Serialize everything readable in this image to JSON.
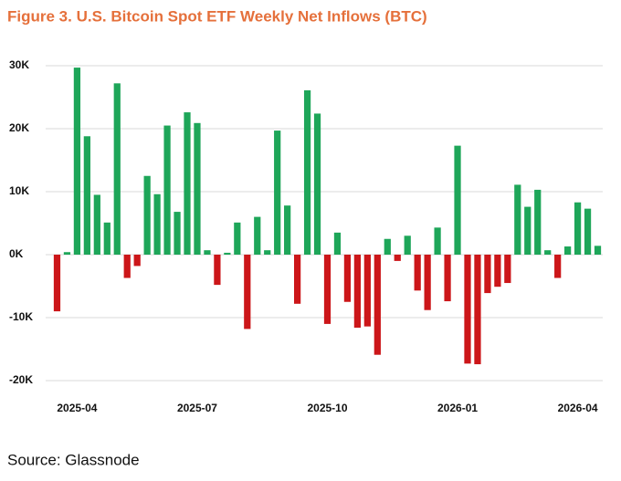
{
  "chart_data": {
    "type": "bar",
    "title": "Figure 3. U.S. Bitcoin Spot ETF Weekly Net Inflows (BTC)",
    "source": "Source: Glassnode",
    "categories": [
      null,
      null,
      "2025-04",
      null,
      null,
      null,
      null,
      null,
      null,
      null,
      null,
      null,
      null,
      null,
      "2025-07",
      null,
      null,
      null,
      null,
      null,
      null,
      null,
      null,
      null,
      null,
      null,
      null,
      "2025-10",
      null,
      null,
      null,
      null,
      null,
      null,
      null,
      null,
      null,
      null,
      null,
      null,
      "2026-01",
      null,
      null,
      null,
      null,
      null,
      null,
      null,
      null,
      null,
      null,
      null,
      "2026-04",
      null,
      null
    ],
    "values": [
      -9000,
      400,
      29700,
      18800,
      9500,
      5100,
      27200,
      -3700,
      -1800,
      12500,
      9600,
      20500,
      6800,
      22600,
      20900,
      700,
      -4800,
      300,
      5100,
      -11800,
      6000,
      700,
      19700,
      7800,
      -7800,
      26100,
      22400,
      -11000,
      3500,
      -7500,
      -11600,
      -11400,
      -15900,
      2500,
      -1000,
      3000,
      -5700,
      -8800,
      4300,
      -7400,
      17300,
      -17300,
      -17400,
      -6100,
      -5100,
      -4500,
      11100,
      7600,
      10300,
      700,
      -3700,
      1300,
      8300,
      7300,
      1400
    ],
    "positive_color": "#1ea659",
    "negative_color": "#cc1619",
    "ylim": [
      -20000,
      30000
    ],
    "yticks": [
      {
        "value": -20000,
        "label": "-20K"
      },
      {
        "value": -10000,
        "label": "-10K"
      },
      {
        "value": 0,
        "label": "0K"
      },
      {
        "value": 10000,
        "label": "10K"
      },
      {
        "value": 20000,
        "label": "20K"
      },
      {
        "value": 30000,
        "label": "30K"
      }
    ],
    "grid": true
  }
}
